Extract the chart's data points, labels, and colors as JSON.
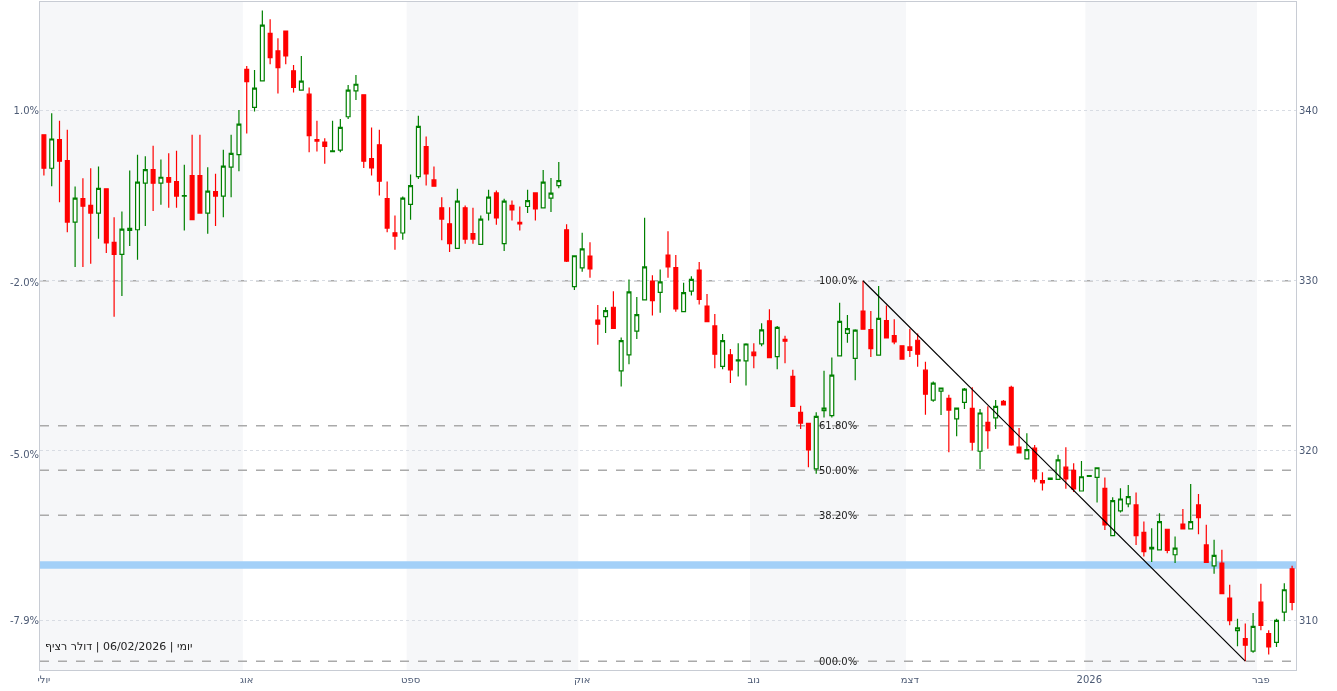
{
  "chart_data": {
    "type": "candlestick",
    "categories": [
      "יולי",
      null,
      null,
      null,
      null,
      null,
      null,
      null,
      null,
      null,
      null,
      null,
      null,
      null,
      null,
      null,
      null,
      null,
      null,
      null,
      null,
      null,
      null,
      null,
      null,
      null,
      "אוג",
      null,
      null,
      null,
      null,
      null,
      null,
      null,
      null,
      null,
      null,
      null,
      null,
      null,
      null,
      null,
      null,
      null,
      null,
      null,
      null,
      "ספט",
      null,
      null,
      null,
      null,
      null,
      null,
      null,
      null,
      null,
      null,
      null,
      null,
      null,
      null,
      null,
      null,
      null,
      null,
      null,
      null,
      null,
      "אוק",
      null,
      null,
      null,
      null,
      null,
      null,
      null,
      null,
      null,
      null,
      null,
      null,
      null,
      null,
      null,
      null,
      null,
      null,
      null,
      null,
      null,
      "נוב",
      null,
      null,
      null,
      null,
      null,
      null,
      null,
      null,
      null,
      null,
      null,
      null,
      null,
      null,
      null,
      null,
      null,
      null,
      null,
      "דצמ",
      null,
      null,
      null,
      null,
      null,
      null,
      null,
      null,
      null,
      null,
      null,
      null,
      null,
      null,
      null,
      null,
      null,
      null,
      null,
      null,
      null,
      null,
      "2026",
      null,
      null,
      null,
      null,
      null,
      null,
      null,
      null,
      null,
      null,
      null,
      null,
      null,
      null,
      null,
      null,
      null,
      null,
      null,
      null,
      null,
      "פבר",
      null,
      null,
      null,
      null
    ],
    "ohlc": [
      [
        338.59,
        338.59,
        336.19,
        336.62
      ],
      [
        336.62,
        339.86,
        335.56,
        338.34
      ],
      [
        338.3,
        339.41,
        334.62,
        337.03
      ],
      [
        337.07,
        338.89,
        332.86,
        333.45
      ],
      [
        333.45,
        335.54,
        330.81,
        334.86
      ],
      [
        334.84,
        336.03,
        330.81,
        334.39
      ],
      [
        334.43,
        336.62,
        331.0,
        333.98
      ],
      [
        333.98,
        336.72,
        332.47,
        335.44
      ],
      [
        335.41,
        335.41,
        331.63,
        332.22
      ],
      [
        332.26,
        333.74,
        327.88,
        331.55
      ],
      [
        331.55,
        334.08,
        329.11,
        333.04
      ],
      [
        332.96,
        336.48,
        332.04,
        333.08
      ],
      [
        333.0,
        337.42,
        331.24,
        335.8
      ],
      [
        335.74,
        337.32,
        333.22,
        336.54
      ],
      [
        336.54,
        337.95,
        334.1,
        335.74
      ],
      [
        335.74,
        337.13,
        334.47,
        336.09
      ],
      [
        336.07,
        337.5,
        334.29,
        335.8
      ],
      [
        335.84,
        337.65,
        334.29,
        334.98
      ],
      [
        334.98,
        336.83,
        332.96,
        335.01
      ],
      [
        336.19,
        338.59,
        333.59,
        333.59
      ],
      [
        336.19,
        338.59,
        333.98,
        333.98
      ],
      [
        333.98,
        336.68,
        332.77,
        335.27
      ],
      [
        335.25,
        336.29,
        333.22,
        334.98
      ],
      [
        334.98,
        337.71,
        333.74,
        336.74
      ],
      [
        336.68,
        338.59,
        334.92,
        337.5
      ],
      [
        337.42,
        340.04,
        336.44,
        339.22
      ],
      [
        342.44,
        342.64,
        338.67,
        341.72
      ],
      [
        340.2,
        342.4,
        339.96,
        341.33
      ],
      [
        341.76,
        345.9,
        341.76,
        345.04
      ],
      [
        344.56,
        345.38,
        342.74,
        343.13
      ],
      [
        343.52,
        344.26,
        341.02,
        342.54
      ],
      [
        344.69,
        344.69,
        342.74,
        343.23
      ],
      [
        342.35,
        342.7,
        341.08,
        341.37
      ],
      [
        341.21,
        343.23,
        341.21,
        341.74
      ],
      [
        340.98,
        341.37,
        337.56,
        338.53
      ],
      [
        338.3,
        339.41,
        337.6,
        338.22
      ],
      [
        338.16,
        338.38,
        336.89,
        337.91
      ],
      [
        337.6,
        339.41,
        337.6,
        337.65
      ],
      [
        337.69,
        339.51,
        337.56,
        339.02
      ],
      [
        339.65,
        341.51,
        339.51,
        341.21
      ],
      [
        341.17,
        342.11,
        340.63,
        341.56
      ],
      [
        340.94,
        340.94,
        336.64,
        337.03
      ],
      [
        337.18,
        339.02,
        336.19,
        336.64
      ],
      [
        338.0,
        338.89,
        335.01,
        335.86
      ],
      [
        334.84,
        335.84,
        332.86,
        333.1
      ],
      [
        332.82,
        333.84,
        331.83,
        332.63
      ],
      [
        332.81,
        334.96,
        332.41,
        334.86
      ],
      [
        334.49,
        336.25,
        333.59,
        335.6
      ],
      [
        336.13,
        339.71,
        335.99,
        339.08
      ],
      [
        337.89,
        338.48,
        335.6,
        336.29
      ],
      [
        335.93,
        336.72,
        335.56,
        335.56
      ],
      [
        334.29,
        334.92,
        332.38,
        333.63
      ],
      [
        333.35,
        334.33,
        331.69,
        332.18
      ],
      [
        331.91,
        335.41,
        331.91,
        334.68
      ],
      [
        334.29,
        334.43,
        332.18,
        332.45
      ],
      [
        332.77,
        334.29,
        332.18,
        332.45
      ],
      [
        332.14,
        333.84,
        332.14,
        333.63
      ],
      [
        333.98,
        335.35,
        333.55,
        334.92
      ],
      [
        335.17,
        335.31,
        333.29,
        333.7
      ],
      [
        332.18,
        334.82,
        331.75,
        334.68
      ],
      [
        334.43,
        334.72,
        333.55,
        334.17
      ],
      [
        333.43,
        334.37,
        332.96,
        333.35
      ],
      [
        334.37,
        335.35,
        333.98,
        334.72
      ],
      [
        335.17,
        335.17,
        333.55,
        334.23
      ],
      [
        334.29,
        336.52,
        334.29,
        335.8
      ],
      [
        334.86,
        336.05,
        334.04,
        335.15
      ],
      [
        335.6,
        336.99,
        335.44,
        335.89
      ],
      [
        333.0,
        333.32,
        331.11,
        331.16
      ],
      [
        329.65,
        331.47,
        329.45,
        331.47
      ],
      [
        330.76,
        332.83,
        330.53,
        331.88
      ],
      [
        331.45,
        332.27,
        330.18,
        330.7
      ],
      [
        327.69,
        328.57,
        326.23,
        327.44
      ],
      [
        327.89,
        328.44,
        326.93,
        328.24
      ],
      [
        328.44,
        329.39,
        327.2,
        327.2
      ],
      [
        324.7,
        326.66,
        323.78,
        326.48
      ],
      [
        325.64,
        330.08,
        325.09,
        329.35
      ],
      [
        327.04,
        329.05,
        326.57,
        328.01
      ],
      [
        328.87,
        333.71,
        328.87,
        330.82
      ],
      [
        329.98,
        330.33,
        327.95,
        328.83
      ],
      [
        329.32,
        330.66,
        328.12,
        329.94
      ],
      [
        331.51,
        332.91,
        330.18,
        330.82
      ],
      [
        330.78,
        331.51,
        328.18,
        328.34
      ],
      [
        328.18,
        329.88,
        328.18,
        329.3
      ],
      [
        329.39,
        330.27,
        329.14,
        330.08
      ],
      [
        330.63,
        331.11,
        328.61,
        328.91
      ],
      [
        328.51,
        329.22,
        327.6,
        327.6
      ],
      [
        327.34,
        328.05,
        324.86,
        325.68
      ],
      [
        324.96,
        326.87,
        324.8,
        326.48
      ],
      [
        325.64,
        325.99,
        323.98,
        324.76
      ],
      [
        325.29,
        326.32,
        324.37,
        325.35
      ],
      [
        325.29,
        326.32,
        323.84,
        326.28
      ],
      [
        325.8,
        326.32,
        324.86,
        325.6
      ],
      [
        326.29,
        327.5,
        326.14,
        327.11
      ],
      [
        327.64,
        328.32,
        325.48,
        325.48
      ],
      [
        325.54,
        327.34,
        324.8,
        327.26
      ],
      [
        326.56,
        326.76,
        325.15,
        326.44
      ],
      [
        324.37,
        324.76,
        322.61,
        322.61
      ],
      [
        322.26,
        322.65,
        321.28,
        321.63
      ],
      [
        321.61,
        321.61,
        319.03,
        320.05
      ],
      [
        318.93,
        322.26,
        318.64,
        322.02
      ],
      [
        322.36,
        324.7,
        321.96,
        322.51
      ],
      [
        322.06,
        325.48,
        321.96,
        324.45
      ],
      [
        325.58,
        328.71,
        325.58,
        327.61
      ],
      [
        326.91,
        327.99,
        326.36,
        327.18
      ],
      [
        325.43,
        327.15,
        324.15,
        327.09
      ],
      [
        328.22,
        330.0,
        327.15,
        327.15
      ],
      [
        327.13,
        328.22,
        325.52,
        326.01
      ],
      [
        325.62,
        329.69,
        325.62,
        327.79
      ],
      [
        327.65,
        328.55,
        326.64,
        326.64
      ],
      [
        326.77,
        327.73,
        326.27,
        326.4
      ],
      [
        326.17,
        326.17,
        325.39,
        325.39
      ],
      [
        326.11,
        327.18,
        325.52,
        325.91
      ],
      [
        326.5,
        326.89,
        324.94,
        325.68
      ],
      [
        324.74,
        325.23,
        322.12,
        323.33
      ],
      [
        322.98,
        324.08,
        322.88,
        323.98
      ],
      [
        323.51,
        323.69,
        322.1,
        323.69
      ],
      [
        323.08,
        323.29,
        319.91,
        322.39
      ],
      [
        321.87,
        322.51,
        320.85,
        322.51
      ],
      [
        322.84,
        323.69,
        322.45,
        323.63
      ],
      [
        322.49,
        323.73,
        320.01,
        320.5
      ],
      [
        319.97,
        322.45,
        318.93,
        322.22
      ],
      [
        321.67,
        322.61,
        320.11,
        321.18
      ],
      [
        321.93,
        322.98,
        321.28,
        322.61
      ],
      [
        322.9,
        322.98,
        322.69,
        322.69
      ],
      [
        323.73,
        323.82,
        320.3,
        320.34
      ],
      [
        320.21,
        321.34,
        319.87,
        319.87
      ],
      [
        319.52,
        321.03,
        319.52,
        320.07
      ],
      [
        320.15,
        320.34,
        318.15,
        318.35
      ],
      [
        318.25,
        318.74,
        317.66,
        318.11
      ],
      [
        318.31,
        318.39,
        318.31,
        318.39
      ],
      [
        318.31,
        319.76,
        318.31,
        319.46
      ],
      [
        319.03,
        320.21,
        317.76,
        318.35
      ],
      [
        318.84,
        319.27,
        317.57,
        317.76
      ],
      [
        317.63,
        319.39,
        317.63,
        318.47
      ],
      [
        318.49,
        318.53,
        318.49,
        318.53
      ],
      [
        318.43,
        319.0,
        316.96,
        319.0
      ],
      [
        317.79,
        318.43,
        315.34,
        315.64
      ],
      [
        315.01,
        317.26,
        315.01,
        317.06
      ],
      [
        316.46,
        317.79,
        316.36,
        317.16
      ],
      [
        316.87,
        317.98,
        316.67,
        317.3
      ],
      [
        316.81,
        317.55,
        314.46,
        315.01
      ],
      [
        315.2,
        315.83,
        313.78,
        314.07
      ],
      [
        314.23,
        315.44,
        313.45,
        314.31
      ],
      [
        314.17,
        316.32,
        314.17,
        315.83
      ],
      [
        315.38,
        315.38,
        313.97,
        314.13
      ],
      [
        313.88,
        314.95,
        313.39,
        314.27
      ],
      [
        315.69,
        316.57,
        315.4,
        315.4
      ],
      [
        315.4,
        318.04,
        315.4,
        315.83
      ],
      [
        316.81,
        317.45,
        315.09,
        316.07
      ],
      [
        314.46,
        315.64,
        313.43,
        313.43
      ],
      [
        313.23,
        314.76,
        312.76,
        313.84
      ],
      [
        313.39,
        314.17,
        311.59,
        311.59
      ],
      [
        311.33,
        312.11,
        309.73,
        310.0
      ],
      [
        309.42,
        310.12,
        308.5,
        309.58
      ],
      [
        308.95,
        309.83,
        307.62,
        308.56
      ],
      [
        308.21,
        310.45,
        308.11,
        309.67
      ],
      [
        311.1,
        312.17,
        309.44,
        309.73
      ],
      [
        309.24,
        309.44,
        308.01,
        308.46
      ],
      [
        308.73,
        310.12,
        308.46,
        310.02
      ],
      [
        310.51,
        312.21,
        309.97,
        311.82
      ],
      [
        313.05,
        313.23,
        310.61,
        311.08
      ]
    ],
    "colors": [
      "#ff0000",
      "#008000",
      "#ff0000",
      "#ff0000",
      "#008000",
      "#ff0000",
      "#ff0000",
      "#008000",
      "#ff0000",
      "#ff0000",
      "#008000",
      "#008000",
      "#008000",
      "#008000",
      "#ff0000",
      "#008000",
      "#ff0000",
      "#ff0000",
      "#008000",
      "#ff0000",
      "#ff0000",
      "#008000",
      "#ff0000",
      "#008000",
      "#008000",
      "#008000",
      "#ff0000",
      "#008000",
      "#008000",
      "#ff0000",
      "#ff0000",
      "#ff0000",
      "#ff0000",
      "#008000",
      "#ff0000",
      "#ff0000",
      "#ff0000",
      "#008000",
      "#008000",
      "#008000",
      "#008000",
      "#ff0000",
      "#ff0000",
      "#ff0000",
      "#ff0000",
      "#ff0000",
      "#008000",
      "#008000",
      "#008000",
      "#ff0000",
      "#ff0000",
      "#ff0000",
      "#ff0000",
      "#008000",
      "#ff0000",
      "#ff0000",
      "#008000",
      "#008000",
      "#ff0000",
      "#008000",
      "#ff0000",
      "#ff0000",
      "#008000",
      "#ff0000",
      "#008000",
      "#008000",
      "#008000",
      "#ff0000",
      "#008000",
      "#008000",
      "#ff0000",
      "#ff0000",
      "#008000",
      "#ff0000",
      "#008000",
      "#008000",
      "#008000",
      "#008000",
      "#ff0000",
      "#008000",
      "#ff0000",
      "#ff0000",
      "#008000",
      "#008000",
      "#ff0000",
      "#ff0000",
      "#ff0000",
      "#008000",
      "#ff0000",
      "#008000",
      "#008000",
      "#ff0000",
      "#008000",
      "#ff0000",
      "#008000",
      "#ff0000",
      "#ff0000",
      "#ff0000",
      "#ff0000",
      "#008000",
      "#008000",
      "#008000",
      "#008000",
      "#008000",
      "#008000",
      "#ff0000",
      "#ff0000",
      "#008000",
      "#ff0000",
      "#ff0000",
      "#ff0000",
      "#ff0000",
      "#ff0000",
      "#ff0000",
      "#008000",
      "#008000",
      "#ff0000",
      "#008000",
      "#008000",
      "#ff0000",
      "#008000",
      "#ff0000",
      "#008000",
      "#ff0000",
      "#ff0000",
      "#ff0000",
      "#008000",
      "#ff0000",
      "#ff0000",
      "#008000",
      "#008000",
      "#ff0000",
      "#ff0000",
      "#008000",
      "#008000",
      "#008000",
      "#ff0000",
      "#008000",
      "#008000",
      "#008000",
      "#ff0000",
      "#ff0000",
      "#008000",
      "#008000",
      "#ff0000",
      "#008000",
      "#ff0000",
      "#008000",
      "#ff0000",
      "#ff0000",
      "#008000",
      "#ff0000",
      "#ff0000",
      "#008000",
      "#ff0000",
      "#008000",
      "#ff0000",
      "#ff0000",
      "#008000",
      "#008000",
      "#ff0000"
    ],
    "series": [
      {
        "type": "line",
        "color": "#000000",
        "values": [
          null,
          null,
          null,
          null,
          null,
          null,
          null,
          null,
          null,
          null,
          null,
          null,
          null,
          null,
          null,
          null,
          null,
          null,
          null,
          null,
          null,
          null,
          null,
          null,
          null,
          null,
          null,
          null,
          null,
          null,
          null,
          null,
          null,
          null,
          null,
          null,
          null,
          null,
          null,
          null,
          null,
          null,
          null,
          null,
          null,
          null,
          null,
          null,
          null,
          null,
          null,
          null,
          null,
          null,
          null,
          null,
          null,
          null,
          null,
          null,
          null,
          null,
          null,
          null,
          null,
          null,
          null,
          null,
          null,
          null,
          null,
          null,
          null,
          null,
          null,
          null,
          null,
          null,
          null,
          null,
          null,
          null,
          null,
          null,
          null,
          null,
          null,
          null,
          null,
          null,
          null,
          null,
          null,
          null,
          null,
          null,
          null,
          null,
          null,
          null,
          null,
          null,
          null,
          null,
          null,
          330.0,
          null,
          null,
          null,
          null,
          null,
          null,
          null,
          null,
          null,
          null,
          null,
          null,
          null,
          null,
          null,
          null,
          null,
          null,
          null,
          null,
          null,
          null,
          null,
          null,
          null,
          null,
          null,
          null,
          null,
          null,
          null,
          null,
          null,
          null,
          null,
          null,
          null,
          null,
          null,
          null,
          null,
          null,
          null,
          null,
          null,
          null,
          null,
          null,
          307.62,
          null,
          null,
          null,
          null,
          null,
          null
        ]
      }
    ],
    "ylim": [
      307.1,
      346.4
    ],
    "yticks": [
      310,
      320,
      330,
      340
    ],
    "y2lim": [
      -8.76,
      2.9
    ],
    "y2ticks": [
      {
        "value": -7.9,
        "label": "-7.9%"
      },
      {
        "value": -5.0,
        "label": "-5.0%"
      },
      {
        "value": -2.0,
        "label": "-2.0%"
      },
      {
        "value": 1.0,
        "label": "1.0%"
      }
    ],
    "grid": "y",
    "ref_lines": [
      {
        "axis": "y",
        "value": 330.0,
        "color": "#aaaaaa",
        "line_style": "dashed"
      },
      {
        "axis": "y",
        "value": 321.47,
        "color": "#aaaaaa",
        "line_style": "dashed"
      },
      {
        "axis": "y",
        "value": 318.85,
        "color": "#aaaaaa",
        "line_style": "dashed"
      },
      {
        "axis": "y",
        "value": 316.2,
        "color": "#aaaaaa",
        "line_style": "dashed"
      },
      {
        "axis": "y",
        "value": 307.62,
        "color": "#aaaaaa",
        "line_style": "dashed"
      }
    ],
    "bands": [
      {
        "axis": "x",
        "from": "יולי",
        "to": "אוג",
        "color": "#f6f7f9"
      },
      {
        "axis": "x",
        "from": "ספט",
        "to": "אוק",
        "color": "#f6f7f9"
      },
      {
        "axis": "x",
        "from": "נוב",
        "to": "דצמ",
        "color": "#f6f7f9"
      },
      {
        "axis": "x",
        "from": "2026",
        "to": "פבר",
        "color": "#f6f7f9"
      },
      {
        "axis": "y",
        "from": 313.05,
        "to": 313.5,
        "color": "#a3d0f8"
      }
    ],
    "annotations": [
      {
        "text": "100.0%",
        "y": 330.0
      },
      {
        "text": "61.80%",
        "y": 321.47
      },
      {
        "text": "50.00%",
        "y": 318.85
      },
      {
        "text": "38.20%",
        "y": 316.2
      },
      {
        "text": "000.0%",
        "y": 307.62
      },
      "יומי | 06/02/2026 | דולר רציף"
    ]
  }
}
